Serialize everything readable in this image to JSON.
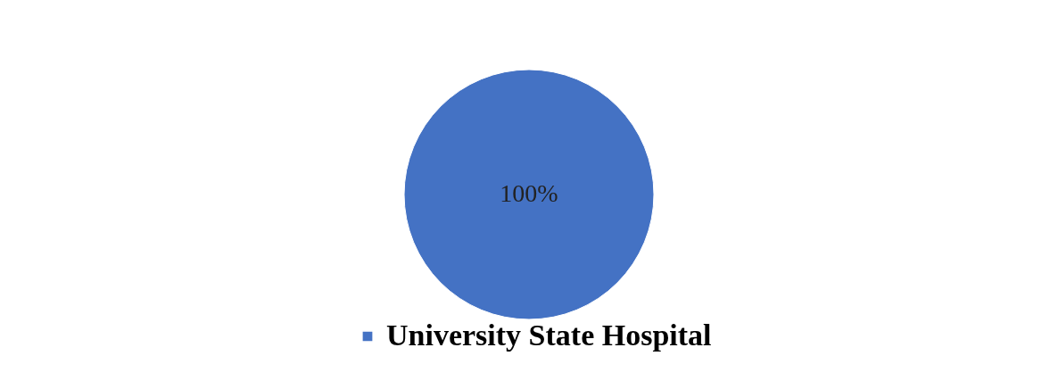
{
  "chart_data": {
    "type": "pie",
    "categories": [
      "University State Hospital"
    ],
    "values": [
      100
    ],
    "colors": [
      "#4472c4"
    ],
    "value_labels": [
      "100%"
    ],
    "legend": "bottom"
  }
}
